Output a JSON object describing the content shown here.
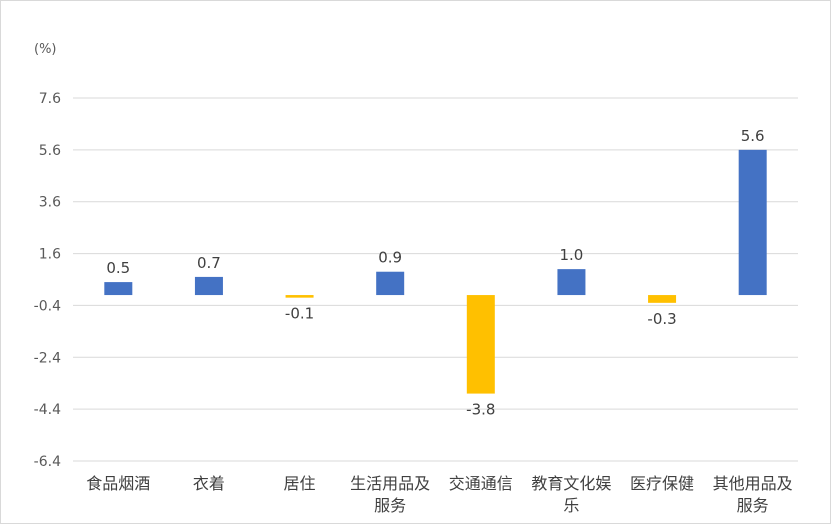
{
  "chart_data": {
    "type": "bar",
    "unit_label": "(%)",
    "categories": [
      "食品烟酒",
      "衣着",
      "居住",
      "生活用品及服务",
      "交通通信",
      "教育文化娱乐",
      "医疗保健",
      "其他用品及服务"
    ],
    "category_lines": [
      [
        "食品烟酒"
      ],
      [
        "衣着"
      ],
      [
        "居住"
      ],
      [
        "生活用品及",
        "服务"
      ],
      [
        "交通通信"
      ],
      [
        "教育文化娱",
        "乐"
      ],
      [
        "医疗保健"
      ],
      [
        "其他用品及",
        "服务"
      ]
    ],
    "values": [
      0.5,
      0.7,
      -0.1,
      0.9,
      -3.8,
      1.0,
      -0.3,
      5.6
    ],
    "value_labels": [
      "0.5",
      "0.7",
      "-0.1",
      "0.9",
      "-3.8",
      "1.0",
      "-0.3",
      "5.6"
    ],
    "y_ticks": [
      7.6,
      5.6,
      3.6,
      1.6,
      -0.4,
      -2.4,
      -4.4,
      -6.4
    ],
    "y_tick_labels": [
      "7.6",
      "5.6",
      "3.6",
      "1.6",
      "-0.4",
      "-2.4",
      "-4.4",
      "-6.4"
    ],
    "ylim": [
      -6.4,
      7.6
    ],
    "grid": true,
    "colors": {
      "positive": "#4472C4",
      "negative": "#FFC000",
      "gridline": "#d9d9d9"
    }
  }
}
